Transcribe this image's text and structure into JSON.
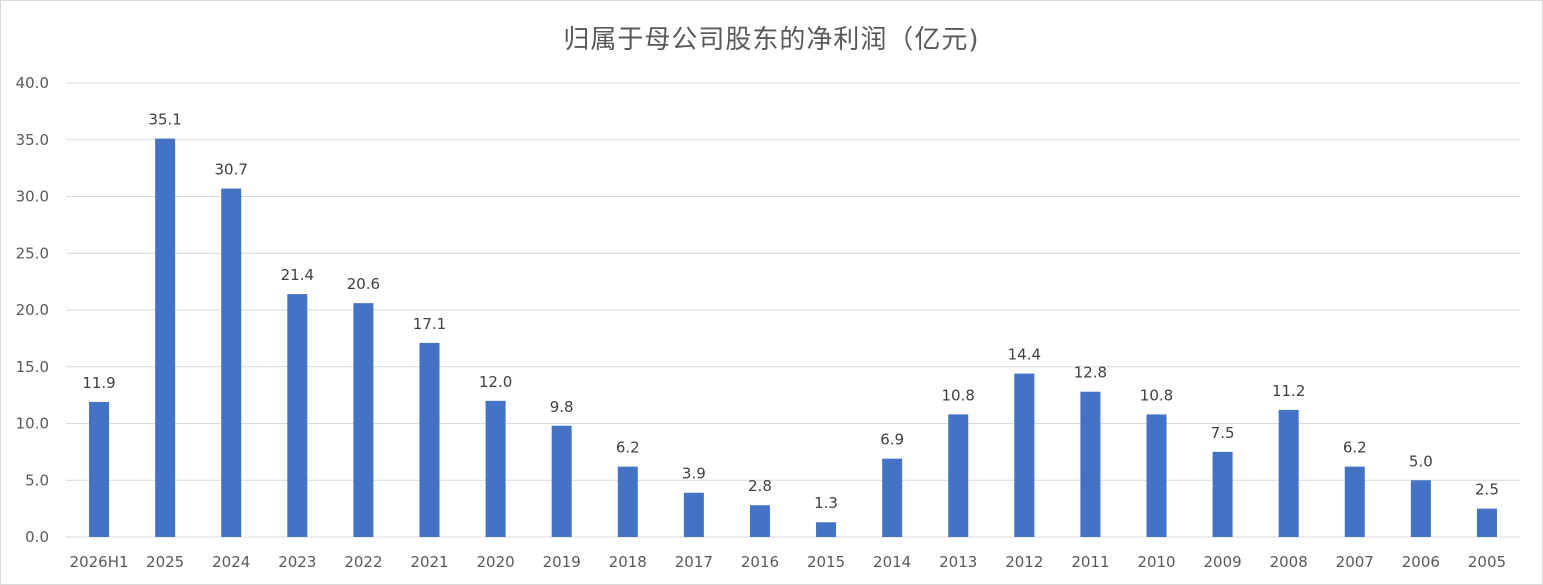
{
  "chart_data": {
    "type": "bar",
    "title": "归属于母公司股东的净利润（亿元)",
    "xlabel": "",
    "ylabel": "",
    "categories": [
      "2026H1",
      "2025",
      "2024",
      "2023",
      "2022",
      "2021",
      "2020",
      "2019",
      "2018",
      "2017",
      "2016",
      "2015",
      "2014",
      "2013",
      "2012",
      "2011",
      "2010",
      "2009",
      "2008",
      "2007",
      "2006",
      "2005"
    ],
    "values": [
      11.9,
      35.1,
      30.7,
      21.4,
      20.6,
      17.1,
      12.0,
      9.8,
      6.2,
      3.9,
      2.8,
      1.3,
      6.9,
      10.8,
      14.4,
      12.8,
      10.8,
      7.5,
      11.2,
      6.2,
      5.0,
      2.5
    ],
    "value_labels": [
      "11.9",
      "35.1",
      "30.7",
      "21.4",
      "20.6",
      "17.1",
      "12.0",
      "9.8",
      "6.2",
      "3.9",
      "2.8",
      "1.3",
      "6.9",
      "10.8",
      "14.4",
      "12.8",
      "10.8",
      "7.5",
      "11.2",
      "6.2",
      "5.0",
      "2.5"
    ],
    "ylim": [
      0,
      40
    ],
    "yticks": [
      "0.0",
      "5.0",
      "10.0",
      "15.0",
      "20.0",
      "25.0",
      "30.0",
      "35.0",
      "40.0"
    ],
    "grid": true,
    "legend": "none",
    "colors": {
      "bar": "#4472C4",
      "grid": "#d9d9d9",
      "text": "#595959"
    }
  }
}
